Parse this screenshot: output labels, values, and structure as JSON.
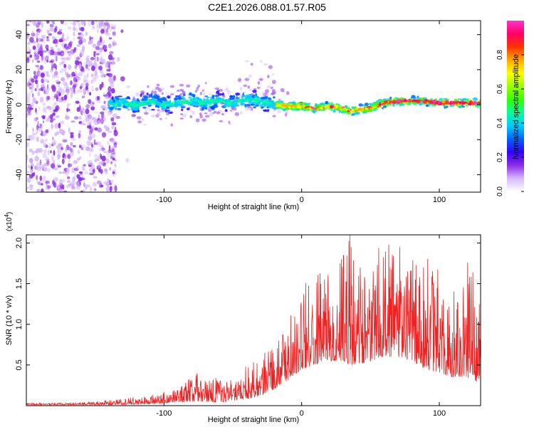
{
  "title": "C2E1.2026.088.01.57.R05",
  "chart_data": [
    {
      "type": "heatmap",
      "xlabel": "Height of straight line (km)",
      "ylabel": "Frequency (Hz)",
      "xlim": [
        -200,
        130
      ],
      "ylim": [
        -50,
        48
      ],
      "x_ticks": [
        "-100",
        "0",
        "100"
      ],
      "x_tick_values": [
        -100,
        0,
        100
      ],
      "y_ticks": [
        "40",
        "20",
        "0",
        "-20",
        "-40"
      ],
      "y_tick_values": [
        40,
        20,
        0,
        -20,
        -40
      ],
      "colorbar": {
        "label": "Normalized spectral amplitude",
        "ticks": [
          "0.8",
          "0.6",
          "0.4",
          "0.2",
          "0.0"
        ],
        "tick_values": [
          0.8,
          0.6,
          0.4,
          0.2,
          0.0
        ],
        "colors": [
          "#ffffff",
          "#d6b8ff",
          "#8a2be2",
          "#3300ff",
          "#0066ff",
          "#00ccff",
          "#00ff99",
          "#33ff00",
          "#99ff00",
          "#ffff00",
          "#ffaa00",
          "#ff3300",
          "#ff0066",
          "#ff33cc"
        ]
      },
      "trace": {
        "x": [
          -140,
          -130,
          -120,
          -110,
          -100,
          -90,
          -80,
          -70,
          -60,
          -50,
          -40,
          -30,
          -20,
          -10,
          0,
          10,
          20,
          30,
          35,
          40,
          50,
          60,
          70,
          80,
          90,
          100,
          110,
          120,
          130
        ],
        "y": [
          0,
          1,
          0,
          2,
          0,
          1,
          2,
          1,
          2,
          1,
          3,
          2,
          0,
          -1,
          -1,
          -2,
          -1,
          -2,
          -4,
          -3,
          -2,
          1,
          2,
          2,
          2,
          1,
          1,
          1,
          1
        ]
      }
    },
    {
      "type": "line",
      "xlabel": "Height of straight line (km)",
      "ylabel": "SNR (10 * v/v)",
      "y_multiplier": "(x10",
      "y_multiplier_exp": "4",
      "y_multiplier_close": ")",
      "xlim": [
        -200,
        130
      ],
      "ylim": [
        0,
        2.1
      ],
      "x_ticks": [
        "-100",
        "0",
        "100"
      ],
      "x_tick_values": [
        -100,
        0,
        100
      ],
      "y_ticks": [
        "2.0",
        "1.5",
        "1.0",
        "0.5"
      ],
      "y_tick_values": [
        2.0,
        1.5,
        1.0,
        0.5
      ],
      "series": [
        {
          "name": "SNR",
          "color": "#ee2222",
          "envelope_x": [
            -200,
            -160,
            -130,
            -110,
            -90,
            -80,
            -75,
            -60,
            -50,
            -40,
            -30,
            -20,
            -10,
            0,
            10,
            20,
            30,
            35,
            40,
            50,
            60,
            70,
            80,
            90,
            100,
            110,
            118,
            125,
            130
          ],
          "envelope_y": [
            0.03,
            0.04,
            0.08,
            0.12,
            0.2,
            0.35,
            0.4,
            0.3,
            0.35,
            0.45,
            0.55,
            0.75,
            0.95,
            1.4,
            1.6,
            1.7,
            1.85,
            2.1,
            1.75,
            1.7,
            1.9,
            1.85,
            1.8,
            1.75,
            1.6,
            1.55,
            1.75,
            1.55,
            1.1
          ],
          "floor_y": [
            0.01,
            0.01,
            0.01,
            0.02,
            0.04,
            0.05,
            0.05,
            0.04,
            0.06,
            0.08,
            0.12,
            0.2,
            0.3,
            0.45,
            0.5,
            0.55,
            0.55,
            0.5,
            0.5,
            0.55,
            0.6,
            0.6,
            0.55,
            0.45,
            0.4,
            0.35,
            0.35,
            0.3,
            0.3
          ]
        }
      ]
    }
  ]
}
